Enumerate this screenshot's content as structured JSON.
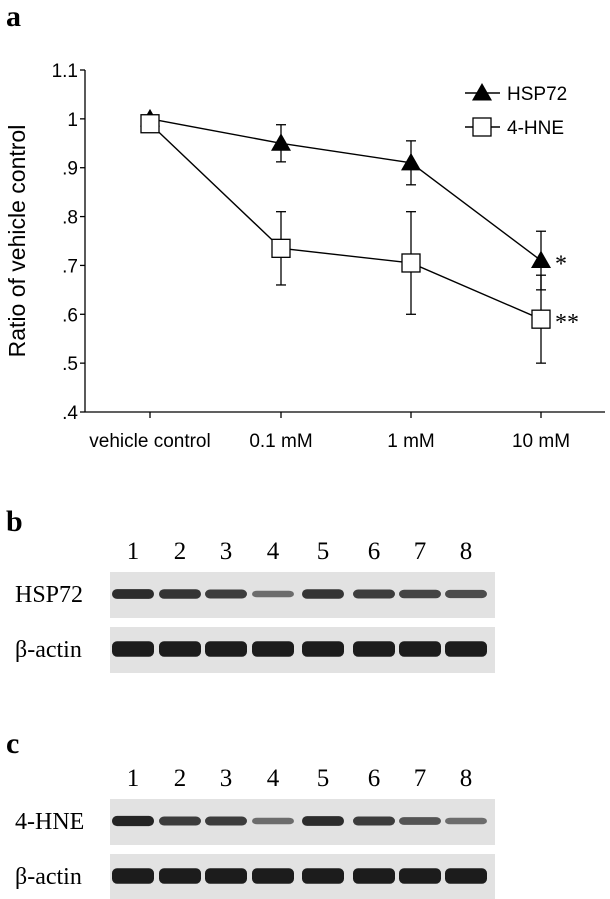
{
  "chart_data": {
    "type": "line",
    "panel_label": "a",
    "categories": [
      "vehicle control",
      "0.1 mM",
      "1 mM",
      "10 mM"
    ],
    "ylabel": "Ratio of vehicle control",
    "ylim": [
      0.4,
      1.1
    ],
    "yticks": [
      ".4",
      ".5",
      ".6",
      ".7",
      ".8",
      ".9",
      "1",
      "1.1"
    ],
    "yticks_values": [
      0.4,
      0.5,
      0.6,
      0.7,
      0.8,
      0.9,
      1.0,
      1.1
    ],
    "grid": false,
    "legend_position": "top-right",
    "series": [
      {
        "name": "HSP72",
        "marker": "filled-triangle",
        "values": [
          1.0,
          0.95,
          0.91,
          0.71
        ],
        "errors": [
          0.0,
          0.038,
          0.045,
          0.06
        ],
        "annotations": [
          "",
          "",
          "",
          "*"
        ]
      },
      {
        "name": "4-HNE",
        "marker": "open-square",
        "values": [
          0.99,
          0.735,
          0.705,
          0.59
        ],
        "errors": [
          0.0,
          0.075,
          0.105,
          0.09
        ],
        "annotations": [
          "",
          "",
          "",
          "**"
        ]
      }
    ]
  },
  "blot_b": {
    "panel_label": "b",
    "lanes": [
      "1",
      "2",
      "3",
      "4",
      "5",
      "6",
      "7",
      "8"
    ],
    "rows": [
      {
        "label": "HSP72",
        "band_strength": [
          0.85,
          0.8,
          0.75,
          0.45,
          0.8,
          0.75,
          0.7,
          0.65
        ]
      },
      {
        "label": "β-actin",
        "band_strength": [
          0.95,
          0.95,
          0.95,
          0.95,
          0.95,
          0.95,
          0.95,
          0.95
        ]
      }
    ]
  },
  "blot_c": {
    "panel_label": "c",
    "lanes": [
      "1",
      "2",
      "3",
      "4",
      "5",
      "6",
      "7",
      "8"
    ],
    "rows": [
      {
        "label": "4-HNE",
        "band_strength": [
          0.9,
          0.75,
          0.75,
          0.45,
          0.85,
          0.75,
          0.6,
          0.45
        ]
      },
      {
        "label": "β-actin",
        "band_strength": [
          0.95,
          0.95,
          0.95,
          0.95,
          0.95,
          0.95,
          0.95,
          0.95
        ]
      }
    ]
  }
}
